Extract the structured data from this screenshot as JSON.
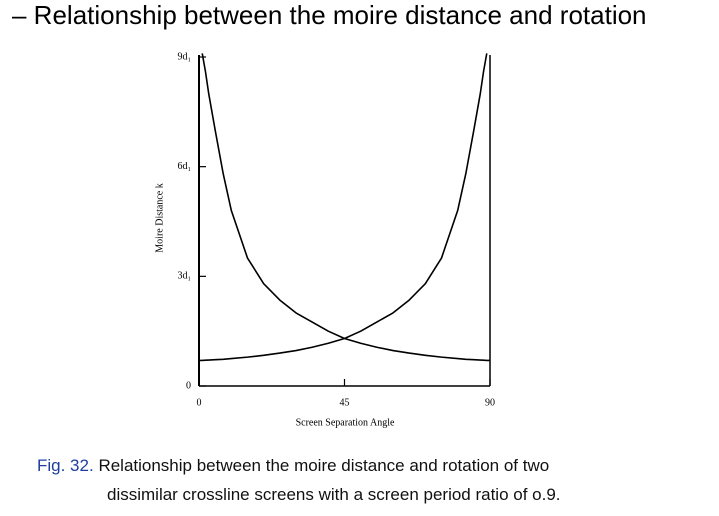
{
  "heading": "– Relationship between the moire distance and rotation",
  "caption": {
    "label": "Fig. 32.",
    "lines": [
      "Relationship between the moire distance and rotation of two",
      "dissimilar crossline screens with a screen period ratio of o.9."
    ]
  },
  "chart_data": {
    "type": "line",
    "x_label": "Screen Separation Angle",
    "y_label": "Moire Distance  k",
    "x": [
      0,
      1,
      2,
      3,
      5,
      7.5,
      10,
      15,
      20,
      25,
      30,
      35,
      40,
      45,
      50,
      55,
      60,
      65,
      70,
      75,
      80,
      82.5,
      85,
      87,
      88,
      89,
      90
    ],
    "series": [
      {
        "color": "#000000",
        "values": [
          null,
          9.1,
          8.6,
          8.0,
          7.0,
          5.8,
          4.8,
          3.5,
          2.8,
          2.35,
          2.0,
          1.75,
          1.5,
          1.3,
          1.17,
          1.06,
          0.97,
          0.9,
          0.84,
          0.79,
          0.75,
          0.73,
          0.72,
          0.71,
          0.705,
          0.7,
          0.7
        ]
      },
      {
        "color": "#000000",
        "values": [
          0.7,
          0.7,
          0.705,
          0.71,
          0.72,
          0.73,
          0.75,
          0.79,
          0.84,
          0.9,
          0.97,
          1.06,
          1.17,
          1.3,
          1.5,
          1.75,
          2.0,
          2.35,
          2.8,
          3.5,
          4.8,
          5.8,
          7.0,
          8.0,
          8.6,
          9.1,
          null
        ]
      }
    ],
    "xlim": [
      0,
      90
    ],
    "xticks": [
      0,
      45,
      90
    ],
    "ylim": [
      0,
      9
    ],
    "yticks": [
      0,
      {
        "value": 3,
        "label": "3d₁"
      },
      {
        "value": 6,
        "label": "6d₁"
      },
      {
        "value": 9,
        "label": "9d₁"
      }
    ]
  }
}
